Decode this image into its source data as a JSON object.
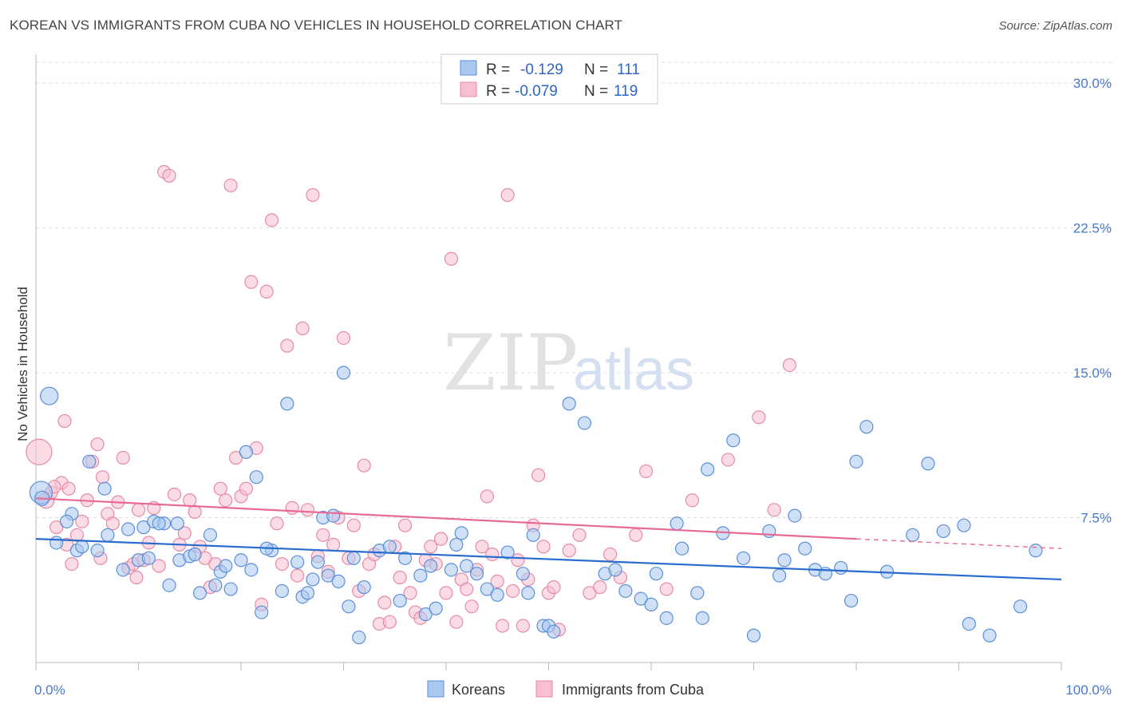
{
  "title": "KOREAN VS IMMIGRANTS FROM CUBA NO VEHICLES IN HOUSEHOLD CORRELATION CHART",
  "source": "Source: ZipAtlas.com",
  "watermark": {
    "zip": "ZIP",
    "atlas": "atlas"
  },
  "colors": {
    "koreans_fill": "#a9c8f0",
    "koreans_stroke": "#5b8fd6",
    "koreans_line": "#2a6bd0",
    "cuba_fill": "#f7bfd0",
    "cuba_stroke": "#e58aa8",
    "cuba_line": "#e86a94",
    "tick_text": "#4a78c8",
    "grid": "#dddddd"
  },
  "legend": {
    "rows": [
      {
        "r_label": "R =",
        "r_value": "-0.129",
        "n_label": "N =",
        "n_value": "111"
      },
      {
        "r_label": "R =",
        "r_value": "-0.079",
        "n_label": "N =",
        "n_value": "119"
      }
    ]
  },
  "bottom_legend": [
    "Koreans",
    "Immigrants from Cuba"
  ],
  "chart_data": {
    "type": "scatter",
    "title": "KOREAN VS IMMIGRANTS FROM CUBA NO VEHICLES IN HOUSEHOLD CORRELATION CHART",
    "xlabel": "",
    "ylabel": "No Vehicles in Household",
    "xlim": [
      0,
      100
    ],
    "ylim": [
      0,
      31.2
    ],
    "x_tick_labels": [
      "0.0%",
      "100.0%"
    ],
    "y_ticks": [
      7.5,
      15.0,
      22.5,
      30.0
    ],
    "y_tick_labels": [
      "7.5%",
      "15.0%",
      "22.5%",
      "30.0%"
    ],
    "grid": true,
    "legend_position": "top-center",
    "series": [
      {
        "name": "Koreans",
        "r": -0.129,
        "n": 111,
        "trend": {
          "x": [
            0,
            100
          ],
          "y": [
            6.4,
            4.3
          ]
        },
        "points": [
          [
            0.5,
            8.8,
            14
          ],
          [
            1.3,
            13.8,
            11
          ],
          [
            0.6,
            8.5,
            9
          ],
          [
            3.5,
            7.7,
            8
          ],
          [
            4.0,
            5.8,
            8
          ],
          [
            5.2,
            10.4,
            8
          ],
          [
            6.7,
            9.0,
            8
          ],
          [
            7.0,
            6.6,
            8
          ],
          [
            10.5,
            7.0,
            8
          ],
          [
            11.5,
            7.3,
            8
          ],
          [
            13.8,
            7.2,
            8
          ],
          [
            14.0,
            5.3,
            8
          ],
          [
            12.5,
            7.2,
            8
          ],
          [
            8.5,
            4.8,
            8
          ],
          [
            10.0,
            5.3,
            8
          ],
          [
            12.0,
            7.2,
            8
          ],
          [
            15.0,
            5.5,
            8
          ],
          [
            17.0,
            6.6,
            8
          ],
          [
            18.0,
            4.7,
            8
          ],
          [
            19.0,
            3.8,
            8
          ],
          [
            16.0,
            3.6,
            8
          ],
          [
            18.5,
            5.0,
            8
          ],
          [
            20.0,
            5.3,
            8
          ],
          [
            20.5,
            10.9,
            8
          ],
          [
            21.0,
            4.8,
            8
          ],
          [
            22.0,
            2.6,
            8
          ],
          [
            23.0,
            5.8,
            8
          ],
          [
            24.0,
            3.7,
            8
          ],
          [
            26.0,
            3.4,
            8
          ],
          [
            27.0,
            4.3,
            8
          ],
          [
            28.0,
            7.5,
            8
          ],
          [
            28.5,
            4.5,
            8
          ],
          [
            29.5,
            4.2,
            8
          ],
          [
            30.5,
            2.9,
            8
          ],
          [
            31.0,
            5.4,
            8
          ],
          [
            32.0,
            3.9,
            8
          ],
          [
            33.5,
            5.8,
            8
          ],
          [
            34.5,
            6.0,
            8
          ],
          [
            35.5,
            3.2,
            8
          ],
          [
            36.0,
            5.4,
            8
          ],
          [
            37.5,
            4.5,
            8
          ],
          [
            38.0,
            2.5,
            8
          ],
          [
            38.5,
            5.0,
            8
          ],
          [
            39.0,
            2.8,
            8
          ],
          [
            40.5,
            4.8,
            8
          ],
          [
            41.0,
            6.1,
            8
          ],
          [
            41.5,
            6.7,
            8
          ],
          [
            42.0,
            5.0,
            8
          ],
          [
            43.0,
            4.6,
            8
          ],
          [
            44.0,
            3.8,
            8
          ],
          [
            45.0,
            3.5,
            8
          ],
          [
            46.0,
            5.7,
            8
          ],
          [
            47.5,
            4.6,
            8
          ],
          [
            48.0,
            3.6,
            8
          ],
          [
            48.5,
            6.6,
            8
          ],
          [
            49.5,
            1.9,
            8
          ],
          [
            50.0,
            1.9,
            8
          ],
          [
            50.5,
            1.6,
            8
          ],
          [
            53.5,
            12.4,
            8
          ],
          [
            52.0,
            13.4,
            8
          ],
          [
            55.5,
            4.6,
            8
          ],
          [
            56.5,
            4.8,
            8
          ],
          [
            57.5,
            3.7,
            8
          ],
          [
            59.0,
            3.3,
            8
          ],
          [
            60.0,
            3.0,
            8
          ],
          [
            60.5,
            4.6,
            8
          ],
          [
            61.5,
            2.3,
            8
          ],
          [
            62.5,
            7.2,
            8
          ],
          [
            63.0,
            5.9,
            8
          ],
          [
            64.5,
            3.6,
            8
          ],
          [
            65.0,
            2.3,
            8
          ],
          [
            65.5,
            10.0,
            8
          ],
          [
            67.0,
            6.7,
            8
          ],
          [
            68.0,
            11.5,
            8
          ],
          [
            69.0,
            5.4,
            8
          ],
          [
            70.0,
            1.4,
            8
          ],
          [
            71.5,
            6.8,
            8
          ],
          [
            72.5,
            4.5,
            8
          ],
          [
            73.0,
            5.3,
            8
          ],
          [
            74.0,
            7.6,
            8
          ],
          [
            75.0,
            5.9,
            8
          ],
          [
            76.0,
            4.8,
            8
          ],
          [
            77.0,
            4.6,
            8
          ],
          [
            78.5,
            4.9,
            8
          ],
          [
            79.5,
            3.2,
            8
          ],
          [
            80.0,
            10.4,
            8
          ],
          [
            81.0,
            12.2,
            8
          ],
          [
            83.0,
            4.7,
            8
          ],
          [
            85.5,
            6.6,
            8
          ],
          [
            87.0,
            10.3,
            8
          ],
          [
            88.5,
            6.8,
            8
          ],
          [
            90.5,
            7.1,
            8
          ],
          [
            91.0,
            2.0,
            8
          ],
          [
            93.0,
            1.4,
            8
          ],
          [
            96.0,
            2.9,
            8
          ],
          [
            97.5,
            5.8,
            8
          ],
          [
            2.0,
            6.2,
            8
          ],
          [
            3.0,
            7.3,
            8
          ],
          [
            4.5,
            6.0,
            8
          ],
          [
            6.0,
            5.8,
            8
          ],
          [
            9.0,
            6.9,
            8
          ],
          [
            11.0,
            5.4,
            8
          ],
          [
            13.0,
            4.0,
            8
          ],
          [
            15.5,
            5.6,
            8
          ],
          [
            17.5,
            4.0,
            8
          ],
          [
            21.5,
            9.6,
            8
          ],
          [
            22.5,
            5.9,
            8
          ],
          [
            24.5,
            13.4,
            8
          ],
          [
            25.5,
            5.2,
            8
          ],
          [
            26.5,
            3.6,
            8
          ],
          [
            27.5,
            5.2,
            8
          ],
          [
            29.0,
            7.6,
            8
          ],
          [
            30.0,
            15.0,
            8
          ],
          [
            31.5,
            1.3,
            8
          ]
        ]
      },
      {
        "name": "Immigrants from Cuba",
        "r": -0.079,
        "n": 119,
        "trend": {
          "x": [
            0,
            80
          ],
          "y": [
            8.5,
            6.4
          ],
          "dashed_x": [
            80,
            100
          ],
          "dashed_y": [
            6.4,
            5.9
          ]
        },
        "points": [
          [
            0.3,
            10.9,
            16
          ],
          [
            1.0,
            8.4,
            10
          ],
          [
            1.5,
            8.8,
            8
          ],
          [
            2.0,
            7.0,
            8
          ],
          [
            2.5,
            9.3,
            8
          ],
          [
            3.0,
            6.1,
            8
          ],
          [
            3.5,
            5.1,
            8
          ],
          [
            4.0,
            6.6,
            8
          ],
          [
            4.5,
            7.3,
            8
          ],
          [
            5.0,
            8.4,
            8
          ],
          [
            5.5,
            10.4,
            8
          ],
          [
            6.0,
            11.3,
            8
          ],
          [
            6.5,
            9.6,
            8
          ],
          [
            7.0,
            7.7,
            8
          ],
          [
            7.5,
            7.2,
            8
          ],
          [
            8.0,
            8.3,
            8
          ],
          [
            8.5,
            10.6,
            8
          ],
          [
            9.0,
            4.9,
            8
          ],
          [
            9.5,
            5.1,
            8
          ],
          [
            10.0,
            7.9,
            8
          ],
          [
            10.5,
            5.3,
            8
          ],
          [
            11.0,
            6.2,
            8
          ],
          [
            11.5,
            8.0,
            8
          ],
          [
            12.0,
            5.0,
            8
          ],
          [
            12.5,
            25.4,
            8
          ],
          [
            13.0,
            25.2,
            8
          ],
          [
            13.5,
            8.7,
            8
          ],
          [
            14.0,
            6.1,
            8
          ],
          [
            14.5,
            6.7,
            8
          ],
          [
            15.0,
            8.4,
            8
          ],
          [
            15.5,
            7.8,
            8
          ],
          [
            16.0,
            6.0,
            8
          ],
          [
            16.5,
            5.4,
            8
          ],
          [
            17.0,
            3.9,
            8
          ],
          [
            17.5,
            5.1,
            8
          ],
          [
            18.0,
            9.0,
            8
          ],
          [
            18.5,
            8.4,
            8
          ],
          [
            19.0,
            24.7,
            8
          ],
          [
            19.5,
            10.6,
            8
          ],
          [
            20.0,
            8.6,
            8
          ],
          [
            20.5,
            9.0,
            8
          ],
          [
            21.0,
            19.7,
            8
          ],
          [
            21.5,
            11.1,
            8
          ],
          [
            22.0,
            3.0,
            8
          ],
          [
            22.5,
            19.2,
            8
          ],
          [
            23.0,
            22.9,
            8
          ],
          [
            23.5,
            7.2,
            8
          ],
          [
            24.0,
            5.1,
            8
          ],
          [
            24.5,
            16.4,
            8
          ],
          [
            25.0,
            8.0,
            8
          ],
          [
            25.5,
            4.5,
            8
          ],
          [
            26.0,
            17.3,
            8
          ],
          [
            26.5,
            7.9,
            8
          ],
          [
            27.0,
            24.2,
            8
          ],
          [
            27.5,
            5.5,
            8
          ],
          [
            28.0,
            6.6,
            8
          ],
          [
            28.5,
            4.7,
            8
          ],
          [
            29.0,
            6.1,
            8
          ],
          [
            29.5,
            7.5,
            8
          ],
          [
            30.0,
            16.8,
            8
          ],
          [
            30.5,
            5.4,
            8
          ],
          [
            31.0,
            7.1,
            8
          ],
          [
            31.5,
            3.7,
            8
          ],
          [
            32.0,
            10.2,
            8
          ],
          [
            32.5,
            5.1,
            8
          ],
          [
            33.0,
            5.6,
            8
          ],
          [
            33.5,
            2.0,
            8
          ],
          [
            34.0,
            3.1,
            8
          ],
          [
            34.5,
            2.1,
            8
          ],
          [
            35.0,
            6.0,
            8
          ],
          [
            35.5,
            4.4,
            8
          ],
          [
            36.0,
            7.1,
            8
          ],
          [
            36.5,
            3.6,
            8
          ],
          [
            37.0,
            2.6,
            8
          ],
          [
            37.5,
            2.3,
            8
          ],
          [
            38.0,
            5.3,
            8
          ],
          [
            38.5,
            6.0,
            8
          ],
          [
            39.0,
            5.1,
            8
          ],
          [
            39.5,
            6.4,
            8
          ],
          [
            40.0,
            3.6,
            8
          ],
          [
            40.5,
            20.9,
            8
          ],
          [
            41.0,
            2.1,
            8
          ],
          [
            41.5,
            4.3,
            8
          ],
          [
            42.0,
            3.8,
            8
          ],
          [
            42.5,
            2.9,
            8
          ],
          [
            43.0,
            4.8,
            8
          ],
          [
            43.5,
            6.0,
            8
          ],
          [
            44.0,
            8.6,
            8
          ],
          [
            44.5,
            5.6,
            8
          ],
          [
            45.0,
            4.2,
            8
          ],
          [
            45.5,
            1.9,
            8
          ],
          [
            46.0,
            24.2,
            8
          ],
          [
            46.5,
            3.7,
            8
          ],
          [
            47.0,
            5.3,
            8
          ],
          [
            47.5,
            1.9,
            8
          ],
          [
            48.0,
            4.3,
            8
          ],
          [
            48.5,
            7.1,
            8
          ],
          [
            49.0,
            9.7,
            8
          ],
          [
            49.5,
            6.0,
            8
          ],
          [
            50.0,
            3.6,
            8
          ],
          [
            50.5,
            3.9,
            8
          ],
          [
            51.0,
            1.7,
            8
          ],
          [
            52.0,
            5.8,
            8
          ],
          [
            53.0,
            6.6,
            8
          ],
          [
            54.0,
            3.6,
            8
          ],
          [
            55.0,
            3.9,
            8
          ],
          [
            56.0,
            5.6,
            8
          ],
          [
            57.0,
            4.4,
            8
          ],
          [
            58.5,
            6.6,
            8
          ],
          [
            59.5,
            9.9,
            8
          ],
          [
            61.5,
            3.8,
            8
          ],
          [
            64.0,
            8.4,
            8
          ],
          [
            67.5,
            10.5,
            8
          ],
          [
            70.5,
            12.7,
            8
          ],
          [
            72.0,
            7.9,
            8
          ],
          [
            73.5,
            15.4,
            8
          ],
          [
            2.8,
            12.5,
            8
          ],
          [
            3.2,
            9.0,
            8
          ],
          [
            6.3,
            5.4,
            8
          ],
          [
            9.8,
            4.4,
            8
          ],
          [
            1.8,
            9.1,
            8
          ]
        ]
      }
    ]
  }
}
